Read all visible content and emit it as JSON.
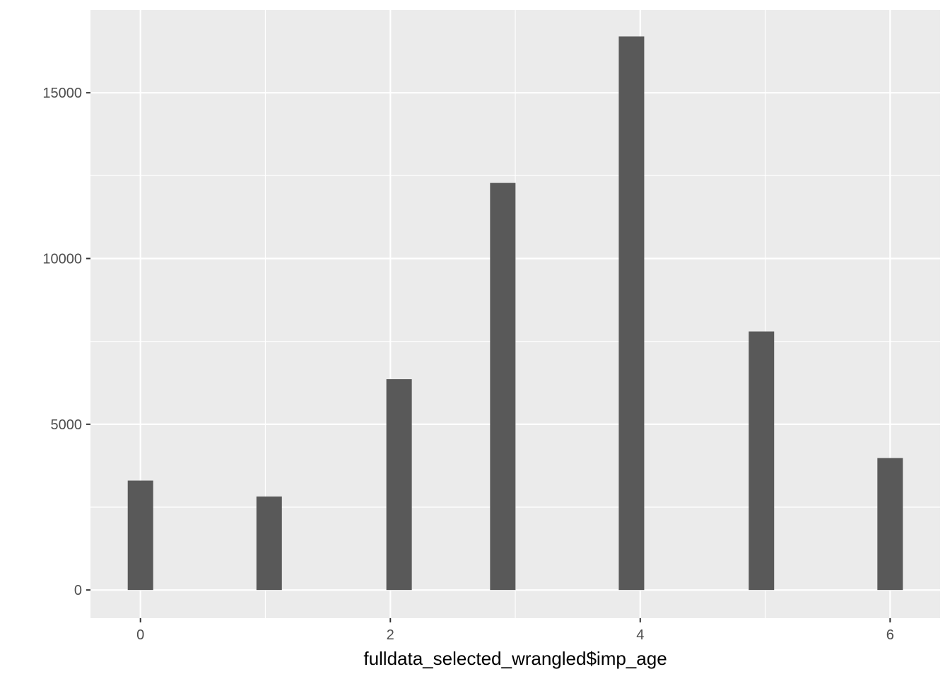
{
  "chart_data": {
    "type": "bar",
    "title": "",
    "xlabel": "fulldata_selected_wrangled$imp_age",
    "ylabel": "",
    "x_ticks": [
      "0",
      "2",
      "4",
      "6"
    ],
    "y_ticks": [
      "0",
      "5000",
      "10000",
      "15000"
    ],
    "xlim": [
      -0.4,
      6.4
    ],
    "ylim": [
      -850,
      17500
    ],
    "grid": true,
    "bars": [
      {
        "x": 0.0,
        "value": 3300
      },
      {
        "x": 1.03,
        "value": 2820
      },
      {
        "x": 2.07,
        "value": 6360
      },
      {
        "x": 2.9,
        "value": 12280
      },
      {
        "x": 3.93,
        "value": 16700
      },
      {
        "x": 4.97,
        "value": 7800
      },
      {
        "x": 6.0,
        "value": 3980
      }
    ],
    "colors": {
      "panel": "#ebebeb",
      "grid": "#ffffff",
      "bar": "#595959",
      "tick": "#4d4d4d"
    }
  }
}
